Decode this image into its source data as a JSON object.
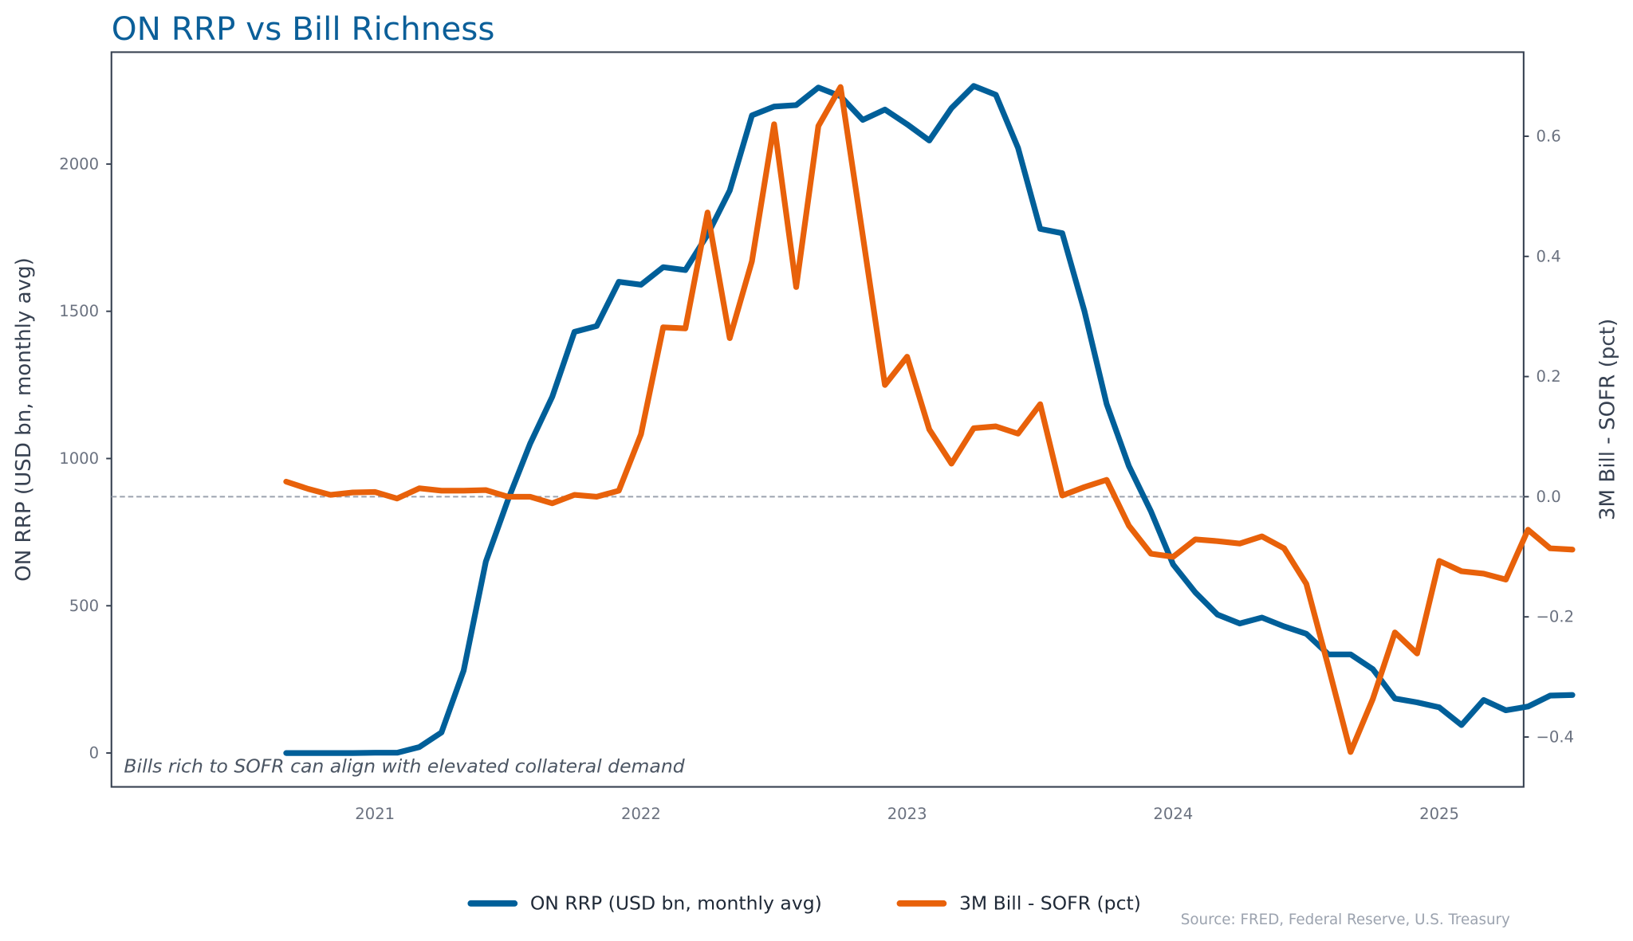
{
  "chart_data": {
    "type": "line",
    "title": "ON RRP vs Bill Richness",
    "xlabel": "",
    "ylabel": "ON RRP (USD bn, monthly avg)",
    "ylabel_right": "3M Bill - SOFR (pct)",
    "x": [
      "2020-09",
      "2020-10",
      "2020-11",
      "2020-12",
      "2021-01",
      "2021-02",
      "2021-03",
      "2021-04",
      "2021-05",
      "2021-06",
      "2021-07",
      "2021-08",
      "2021-09",
      "2021-10",
      "2021-11",
      "2021-12",
      "2022-01",
      "2022-02",
      "2022-03",
      "2022-04",
      "2022-05",
      "2022-06",
      "2022-07",
      "2022-08",
      "2022-09",
      "2022-10",
      "2022-11",
      "2022-12",
      "2023-01",
      "2023-02",
      "2023-03",
      "2023-04",
      "2023-05",
      "2023-06",
      "2023-07",
      "2023-08",
      "2023-09",
      "2023-10",
      "2023-11",
      "2023-12",
      "2024-01",
      "2024-02",
      "2024-03",
      "2024-04",
      "2024-05",
      "2024-06",
      "2024-07",
      "2024-08",
      "2024-09",
      "2024-10",
      "2024-11",
      "2024-12",
      "2025-01",
      "2025-02",
      "2025-03",
      "2025-04",
      "2025-05",
      "2025-06",
      "2025-07"
    ],
    "series": [
      {
        "name": "ON RRP (USD bn, monthly avg)",
        "axis": "left",
        "color": "#005f99",
        "values": [
          0,
          0,
          0,
          0,
          1,
          1,
          20,
          70,
          280,
          650,
          860,
          1050,
          1210,
          1430,
          1450,
          1600,
          1590,
          1650,
          1640,
          1760,
          1910,
          2165,
          2195,
          2200,
          2260,
          2230,
          2150,
          2185,
          2135,
          2080,
          2190,
          2265,
          2235,
          2055,
          1780,
          1765,
          1500,
          1185,
          975,
          820,
          640,
          545,
          470,
          440,
          460,
          430,
          405,
          335,
          335,
          285,
          185,
          172,
          155,
          95,
          180,
          145,
          158,
          195,
          197
        ]
      },
      {
        "name": "3M Bill - SOFR (pct)",
        "axis": "right",
        "color": "#e8610a",
        "values": [
          0.025,
          0.013,
          0.003,
          0.007,
          0.008,
          -0.003,
          0.014,
          0.01,
          0.01,
          0.011,
          0.0,
          0.0,
          -0.011,
          0.003,
          0.0,
          0.01,
          0.104,
          0.282,
          0.28,
          0.473,
          0.264,
          0.392,
          0.62,
          0.349,
          0.617,
          0.682,
          0.435,
          0.186,
          0.233,
          0.112,
          0.055,
          0.114,
          0.117,
          0.105,
          0.154,
          0.002,
          0.016,
          0.028,
          -0.048,
          -0.095,
          -0.1,
          -0.071,
          -0.074,
          -0.078,
          -0.066,
          -0.086,
          -0.145,
          -0.283,
          -0.425,
          -0.337,
          -0.226,
          -0.261,
          -0.107,
          -0.124,
          -0.128,
          -0.138,
          -0.055,
          -0.086,
          -0.088
        ]
      }
    ],
    "ylim": [
      -115,
      2380
    ],
    "ylim_right": [
      -0.483,
      0.74
    ],
    "yticks": [
      "0",
      "500",
      "1000",
      "1500",
      "2000"
    ],
    "yticks_right": [
      "−0.4",
      "−0.2",
      "0.0",
      "0.2",
      "0.4",
      "0.6"
    ],
    "xticks": [
      "2021",
      "2022",
      "2023",
      "2024",
      "2025"
    ],
    "reference_line_right": 0.0,
    "annotation": "Bills rich to SOFR can align with elevated collateral demand",
    "legend": [
      "ON RRP (USD bn, monthly avg)",
      "3M Bill - SOFR (pct)"
    ],
    "legend_position": "bottom-center",
    "source": "Source: FRED, Federal Reserve, U.S. Treasury",
    "grid": false
  }
}
